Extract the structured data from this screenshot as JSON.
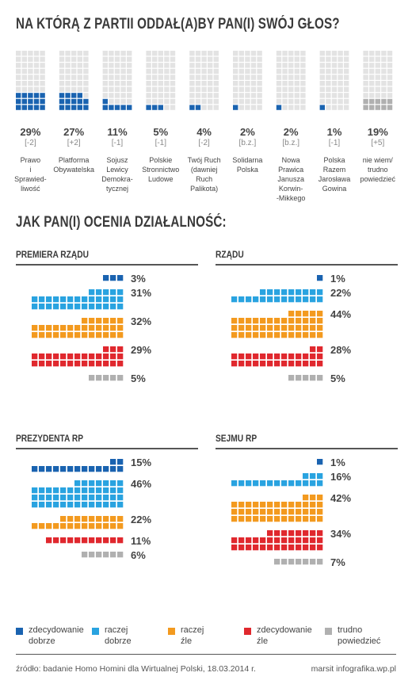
{
  "title1": "NA KTÓRĄ Z PARTII ODDAŁ(A)BY PAN(I) SWÓJ GŁOS?",
  "title2": "JAK PAN(I) OCENIA DZIAŁALNOŚĆ:",
  "colors": {
    "dark": "#1a63b0",
    "light": "#29a3e0",
    "orange": "#f39a1f",
    "red": "#e0282e",
    "gray": "#b0b0b0",
    "empty": "#e3e3e3"
  },
  "parties": [
    {
      "pct": "29%",
      "chg": "[-2]",
      "name": [
        "Prawo",
        "i",
        "Sprawied-",
        "liwość"
      ],
      "value": 29,
      "color": "dark"
    },
    {
      "pct": "27%",
      "chg": "[+2]",
      "name": [
        "Platforma",
        "Obywatelska"
      ],
      "value": 27,
      "color": "dark"
    },
    {
      "pct": "11%",
      "chg": "[-1]",
      "name": [
        "Sojusz",
        "Lewicy",
        "Demokra-",
        "tycznej"
      ],
      "value": 11,
      "color": "dark"
    },
    {
      "pct": "5%",
      "chg": "[-1]",
      "name": [
        "Polskie",
        "Stronnictwo",
        "Ludowe"
      ],
      "value": 5,
      "color": "dark"
    },
    {
      "pct": "4%",
      "chg": "[-2]",
      "name": [
        "Twój Ruch",
        "(dawniej",
        "Ruch",
        "Palikota)"
      ],
      "value": 4,
      "color": "dark"
    },
    {
      "pct": "2%",
      "chg": "[b.z.]",
      "name": [
        "Solidarna",
        "Polska"
      ],
      "value": 2,
      "color": "dark"
    },
    {
      "pct": "2%",
      "chg": "[b.z.]",
      "name": [
        "Nowa",
        "Prawica",
        "Janusza",
        "Korwin-",
        "-Mikkego"
      ],
      "value": 2,
      "color": "dark"
    },
    {
      "pct": "1%",
      "chg": "[-1]",
      "name": [
        "Polska",
        "Razem",
        "Jarosława",
        "Gowina"
      ],
      "value": 1,
      "color": "dark"
    },
    {
      "pct": "19%",
      "chg": "[+5]",
      "name": [
        "nie wiem/",
        "trudno",
        "powiedzieć"
      ],
      "value": 19,
      "color": "gray"
    }
  ],
  "chart_data": {
    "type": "bar",
    "title": "NA KTÓRĄ Z PARTII ODDAŁ(A)BY PAN(I) SWÓJ GŁOS?",
    "categories": [
      "Prawo i Sprawiedliwość",
      "Platforma Obywatelska",
      "Sojusz Lewicy Demokratycznej",
      "Polskie Stronnictwo Ludowe",
      "Twój Ruch (dawniej Ruch Palikota)",
      "Solidarna Polska",
      "Nowa Prawica Janusza Korwin-Mikkego",
      "Polska Razem Jarosława Gowina",
      "nie wiem/trudno powiedzieć"
    ],
    "values": [
      29,
      27,
      11,
      5,
      4,
      2,
      2,
      1,
      19
    ],
    "changes": [
      "[-2]",
      "[+2]",
      "[-1]",
      "[-1]",
      "[-2]",
      "[b.z.]",
      "[b.z.]",
      "[-1]",
      "[+5]"
    ],
    "ratings": [
      {
        "name": "PREMIERA RZĄDU",
        "values": [
          3,
          31,
          32,
          29,
          5
        ]
      },
      {
        "name": "RZĄDU",
        "values": [
          1,
          22,
          44,
          28,
          5
        ]
      },
      {
        "name": "PREZYDENTA RP",
        "values": [
          15,
          46,
          22,
          11,
          6
        ]
      },
      {
        "name": "SEJMU RP",
        "values": [
          1,
          16,
          42,
          34,
          7
        ]
      }
    ],
    "rating_categories": [
      "zdecydowanie dobrze",
      "raczej dobrze",
      "raczej źle",
      "zdecydowanie źle",
      "trudno powiedzieć"
    ]
  },
  "panels": [
    {
      "title": "PREMIERA RZĄDU",
      "values": [
        3,
        31,
        32,
        29,
        5
      ],
      "labels": [
        "3%",
        "31%",
        "32%",
        "29%",
        "5%"
      ]
    },
    {
      "title": "RZĄDU",
      "values": [
        1,
        22,
        44,
        28,
        5
      ],
      "labels": [
        "1%",
        "22%",
        "44%",
        "28%",
        "5%"
      ]
    },
    {
      "title": "PREZYDENTA RP",
      "values": [
        15,
        46,
        22,
        11,
        6
      ],
      "labels": [
        "15%",
        "46%",
        "22%",
        "11%",
        "6%"
      ]
    },
    {
      "title": "SEJMU RP",
      "values": [
        1,
        16,
        42,
        34,
        7
      ],
      "labels": [
        "1%",
        "16%",
        "42%",
        "34%",
        "7%"
      ]
    }
  ],
  "legend": [
    {
      "color": "dark",
      "lines": [
        "zdecydowanie",
        "dobrze"
      ]
    },
    {
      "color": "light",
      "lines": [
        "raczej",
        "dobrze"
      ]
    },
    {
      "color": "orange",
      "lines": [
        "raczej",
        "źle"
      ]
    },
    {
      "color": "red",
      "lines": [
        "zdecydowanie",
        "źle"
      ]
    },
    {
      "color": "gray",
      "lines": [
        "trudno",
        "powiedzieć"
      ]
    }
  ],
  "footer": {
    "source": "źródło: badanie Homo Homini dla Wirtualnej Polski, 18.03.2014 r.",
    "credit": "marsit infografika.wp.pl"
  }
}
